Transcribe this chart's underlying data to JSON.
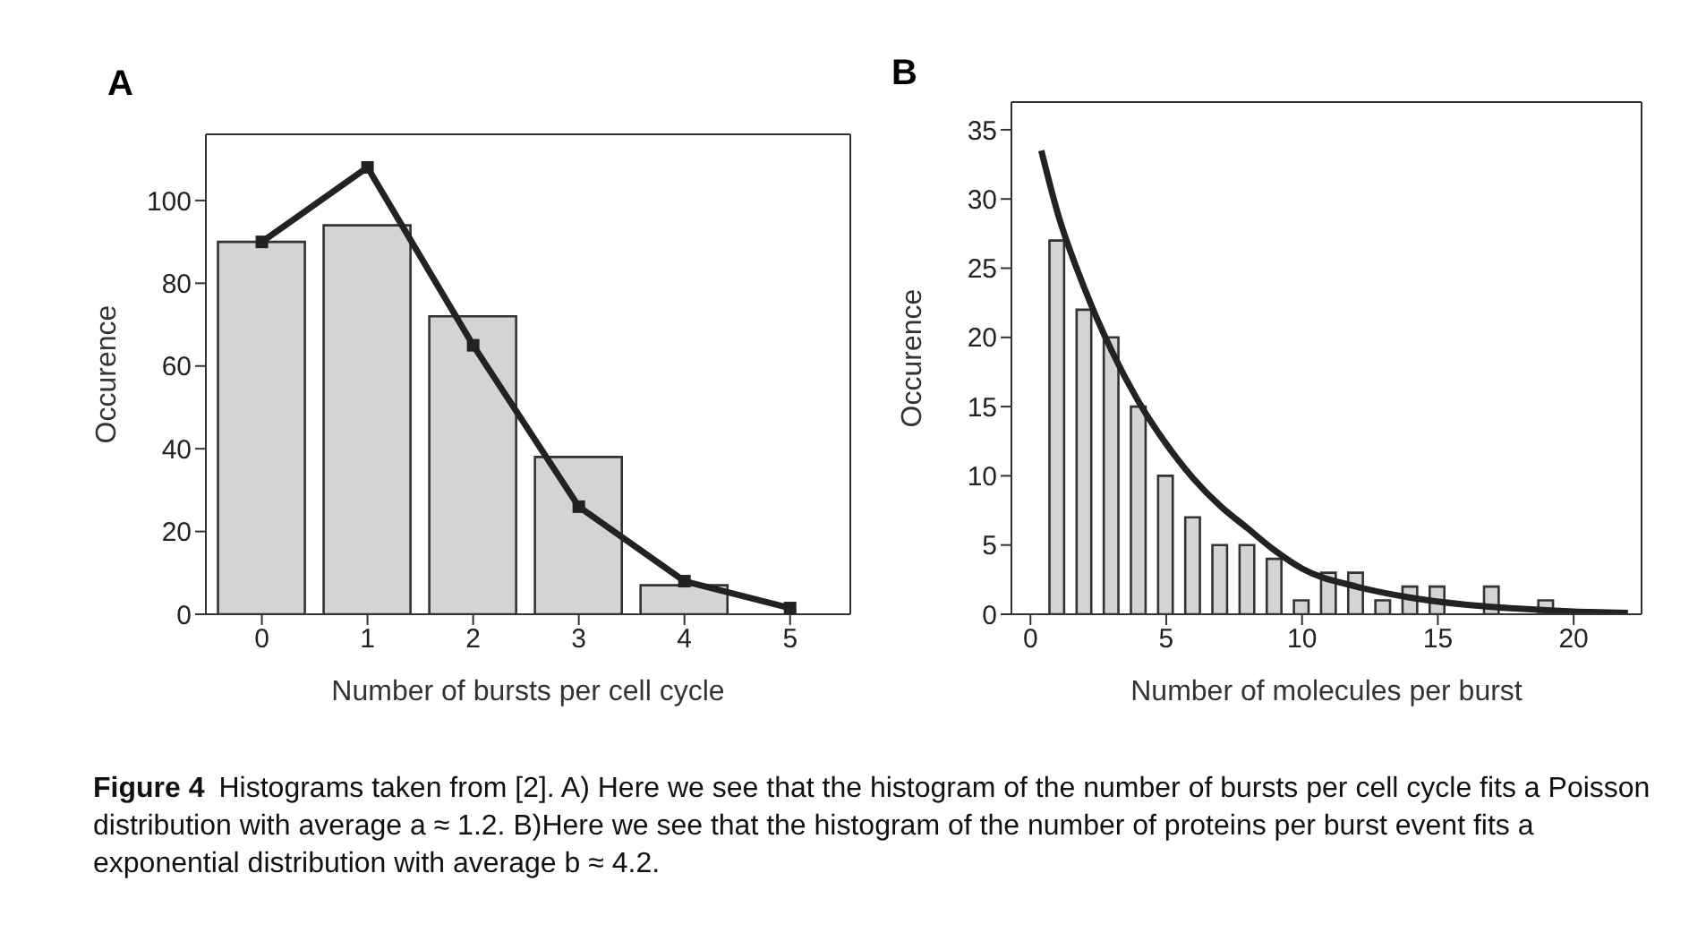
{
  "chart_data": [
    {
      "type": "bar",
      "title": "A",
      "xlabel": "Number of bursts per cell cycle",
      "ylabel": "Occurence",
      "xlim": [
        -0.53,
        5.57
      ],
      "xticks": [
        0,
        1,
        2,
        3,
        4,
        5
      ],
      "ylim": [
        0,
        116
      ],
      "yticks": [
        0,
        20,
        40,
        60,
        80,
        100
      ],
      "marker": "square",
      "series": [
        {
          "x": [
            0,
            1,
            2,
            3,
            4
          ],
          "values": [
            90,
            94,
            72,
            38,
            7
          ],
          "color": "#d3d5d4"
        },
        {
          "type": "line",
          "x": [
            0,
            1,
            2,
            3,
            4,
            5
          ],
          "values": [
            90,
            108,
            65,
            26,
            8,
            1.5
          ],
          "color": "#222222"
        }
      ],
      "annotations": [
        "Figure 4",
        "Histograms taken from [2]. A) Here we see that the histogram of the number of bursts per cell cycle fits a Poisson distribution with average a ≈ 1.2. B)Here we see that the histogram of the number of proteins per burst event fits a exponential distribution with average b ≈ 4.2."
      ]
    },
    {
      "type": "histogram",
      "title": "B",
      "xlabel": "Number of molecules per burst",
      "ylabel": "Occurence",
      "xlim": [
        -0.7,
        22.5
      ],
      "xticks": [
        0,
        5,
        10,
        15,
        20
      ],
      "ylim": [
        0,
        37
      ],
      "yticks": [
        0,
        5,
        10,
        15,
        20,
        25,
        30,
        35
      ],
      "series": [
        {
          "bins": [
            0.5,
            1.5,
            2.5,
            3.5,
            4.5,
            5.5,
            6.5,
            7.5,
            8.5,
            9.5,
            10.5,
            11.5,
            12.5,
            13.5,
            14.5,
            15.5,
            16.5,
            17.5,
            18.5,
            19.5
          ],
          "values": [
            27,
            22,
            20,
            15,
            10,
            7,
            5,
            5,
            4,
            1,
            3,
            3,
            1,
            2,
            2,
            0,
            2,
            0,
            1
          ],
          "color": "#d3d5d4"
        },
        {
          "type": "line",
          "x": [
            0.4,
            1,
            2,
            3,
            4,
            5,
            6,
            7,
            8,
            9,
            10,
            12,
            14,
            16,
            18,
            20,
            22
          ],
          "values": [
            33.5,
            29,
            23.5,
            19,
            15.3,
            12.3,
            9.8,
            7.8,
            6.2,
            4.6,
            3.3,
            2,
            1.2,
            0.7,
            0.4,
            0.2,
            0.1
          ],
          "color": "#222222"
        }
      ]
    }
  ]
}
